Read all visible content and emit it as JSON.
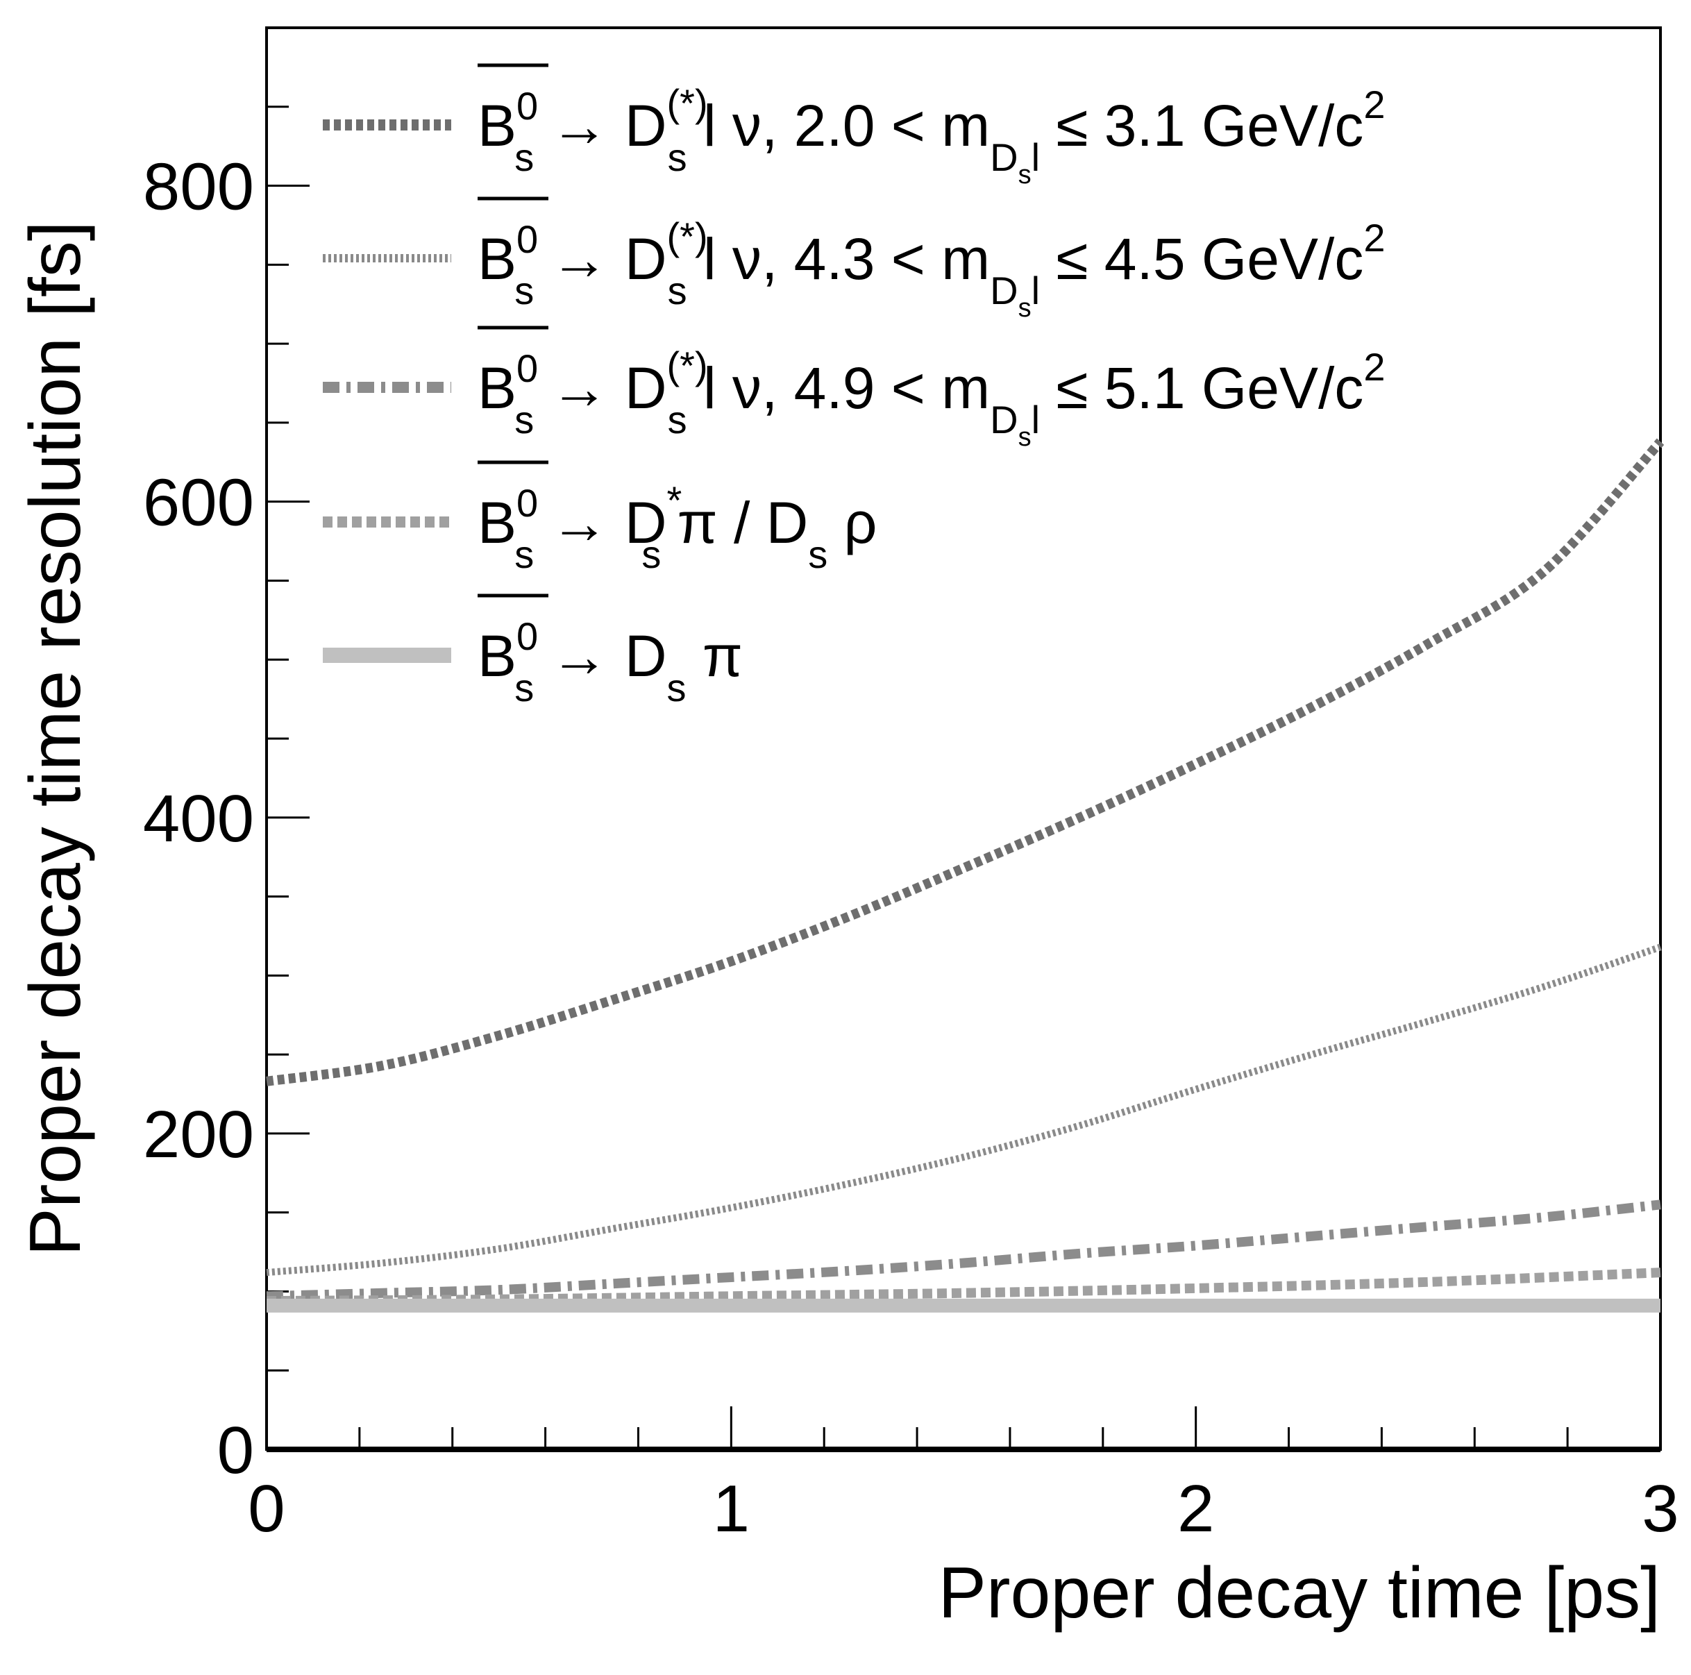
{
  "chart_data": {
    "type": "line",
    "xlabel": "Proper decay time [ps]",
    "ylabel": "Proper decay time resolution [fs]",
    "xlim": [
      0,
      3
    ],
    "ylim": [
      0,
      900
    ],
    "x_ticks": [
      0,
      1,
      2,
      3
    ],
    "y_ticks": [
      0,
      200,
      400,
      600,
      800
    ],
    "x_tick_labels": [
      "0",
      "1",
      "2",
      "3"
    ],
    "y_tick_labels": [
      "0",
      "200",
      "400",
      "600",
      "800"
    ],
    "grid": false,
    "legend_position": "top-left",
    "series": [
      {
        "name": "B̄s0 → Ds(*) l ν, 2.0 < mDsl ≤ 3.1 GeV/c2",
        "legend": {
          "main": "→ D",
          "sub": "s",
          "sup": "(*)",
          "rest": " l ν, 2.0 < m",
          "sub2": "D",
          "sub2sub": "s",
          "sub2tail": "l",
          "tail": " ≤ 3.1 GeV/c",
          "tailsup": "2"
        },
        "color": "#6e6e6e",
        "style": "dotted-thick",
        "x": [
          0,
          0.25,
          0.5,
          0.75,
          1.0,
          1.25,
          1.5,
          1.75,
          2.0,
          2.25,
          2.5,
          2.75,
          3.0
        ],
        "values": [
          233,
          243,
          262,
          285,
          309,
          337,
          368,
          400,
          434,
          470,
          510,
          556,
          638
        ]
      },
      {
        "name": "B̄s0 → Ds(*) l ν, 4.3 < mDsl ≤ 4.5 GeV/c2",
        "legend": {
          "main": "→ D",
          "sub": "s",
          "sup": "(*)",
          "rest": " l ν, 4.3 < m",
          "sub2": "D",
          "sub2sub": "s",
          "sub2tail": "l",
          "tail": " ≤ 4.5 GeV/c",
          "tailsup": "2"
        },
        "color": "#8a8a8a",
        "style": "dotted-fine",
        "x": [
          0,
          0.25,
          0.5,
          0.75,
          1.0,
          1.25,
          1.5,
          1.75,
          2.0,
          2.25,
          2.5,
          2.75,
          3.0
        ],
        "values": [
          112,
          118,
          127,
          140,
          153,
          168,
          185,
          205,
          228,
          250,
          271,
          293,
          318
        ]
      },
      {
        "name": "B̄s0 → Ds(*) l ν, 4.9 < mDsl ≤ 5.1 GeV/c2",
        "legend": {
          "main": "→ D",
          "sub": "s",
          "sup": "(*)",
          "rest": " l ν, 4.9 < m",
          "sub2": "D",
          "sub2sub": "s",
          "sub2tail": "l",
          "tail": " ≤ 5.1 GeV/c",
          "tailsup": "2"
        },
        "color": "#8c8c8c",
        "style": "dash-dot",
        "x": [
          0,
          0.25,
          0.5,
          0.75,
          1.0,
          1.25,
          1.5,
          1.75,
          2.0,
          2.25,
          2.5,
          2.75,
          3.0
        ],
        "values": [
          97,
          99,
          101,
          105,
          109,
          113,
          118,
          124,
          129,
          135,
          141,
          147,
          155
        ]
      },
      {
        "name": "B̄s0 → Ds* π / Ds ρ",
        "legend": {
          "main": "→ D",
          "sub": "s",
          "sup": "*",
          "rest": " π / D",
          "sub2": "s",
          "sub2sub": "",
          "sub2tail": "",
          "tail": " ρ",
          "tailsup": ""
        },
        "color": "#a0a0a0",
        "style": "dashed",
        "x": [
          0,
          0.5,
          1.0,
          1.5,
          2.0,
          2.5,
          3.0
        ],
        "values": [
          94,
          95,
          97,
          99,
          102,
          106,
          112
        ]
      },
      {
        "name": "B̄s0 → Ds π",
        "legend": {
          "main": "→ D",
          "sub": "s",
          "sup": "",
          "rest": " π",
          "sub2": "",
          "sub2sub": "",
          "sub2tail": "",
          "tail": "",
          "tailsup": ""
        },
        "color": "#c0c0c0",
        "style": "solid-thick",
        "x": [
          0,
          1.0,
          2.0,
          3.0
        ],
        "values": [
          91,
          91,
          91,
          91
        ]
      }
    ],
    "legend_prefix": {
      "base": "B",
      "sub": "s",
      "sup": "0"
    }
  }
}
